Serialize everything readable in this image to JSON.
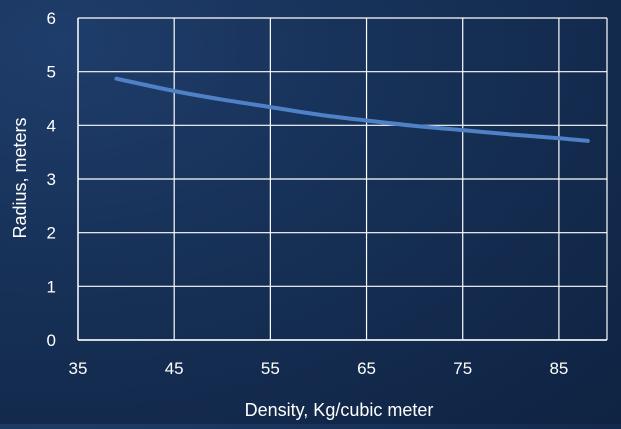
{
  "chart_data": {
    "type": "line",
    "title": "",
    "xlabel": "Density, Kg/cubic meter",
    "ylabel": "Radius, meters",
    "xlim": [
      35,
      90
    ],
    "ylim": [
      0,
      6
    ],
    "x_ticks": [
      35,
      45,
      55,
      65,
      75,
      85
    ],
    "y_ticks": [
      0,
      1,
      2,
      3,
      4,
      5,
      6
    ],
    "grid": true,
    "legend": "none",
    "series": [
      {
        "color": "#4f81c7",
        "x": [
          39,
          45,
          50,
          55,
          60,
          65,
          70,
          75,
          80,
          85,
          88
        ],
        "y": [
          4.87,
          4.64,
          4.48,
          4.34,
          4.2,
          4.09,
          3.99,
          3.91,
          3.83,
          3.76,
          3.71
        ]
      }
    ]
  },
  "colors": {
    "grid": "#ffffff",
    "text": "#ffffff",
    "line": "#4f81c7"
  }
}
